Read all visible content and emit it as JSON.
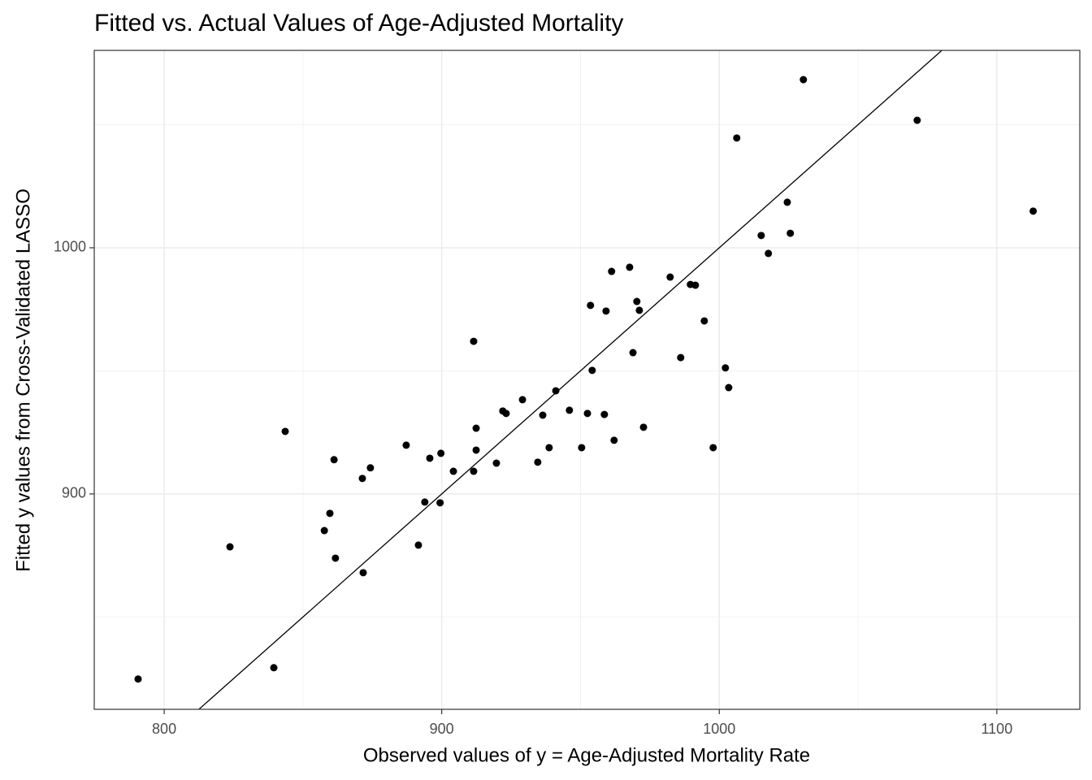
{
  "chart_data": {
    "type": "scatter",
    "title": "Fitted vs. Actual Values of Age-Adjusted Mortality",
    "x_label": "Observed values of y = Age-Adjusted Mortality Rate",
    "y_label": "Fitted y values from Cross-Validated LASSO",
    "xlim": [
      774.8,
      1129.9
    ],
    "ylim": [
      812.5,
      1080.2
    ],
    "xticks": [
      800,
      900,
      1000,
      1100
    ],
    "yticks": [
      900,
      1000
    ],
    "xminor": [
      850,
      950,
      1050
    ],
    "yminor": [
      850,
      950,
      1050
    ],
    "grid": true,
    "color": "#000000",
    "reference_line": {
      "slope": 1,
      "intercept": 0
    },
    "x": [
      790.6,
      823.7,
      839.5,
      843.6,
      857.7,
      859.7,
      861.2,
      861.7,
      871.4,
      871.7,
      874.3,
      887.2,
      891.6,
      893.9,
      895.7,
      899.4,
      899.7,
      904.2,
      911.5,
      911.5,
      912.4,
      912.4,
      919.7,
      922.0,
      923.2,
      929.1,
      934.6,
      936.4,
      938.7,
      941.1,
      946.0,
      950.4,
      952.5,
      953.6,
      954.2,
      958.6,
      959.2,
      961.2,
      962.1,
      967.7,
      968.9,
      970.3,
      971.2,
      972.7,
      982.3,
      986.1,
      989.6,
      991.4,
      994.6,
      997.8,
      1002.2,
      1003.4,
      1006.3,
      1015.1,
      1017.7,
      1024.5,
      1025.6,
      1030.3,
      1071.3,
      1113.1
    ],
    "values": [
      824.8,
      878.5,
      829.4,
      925.4,
      885.1,
      892.1,
      913.9,
      873.9,
      906.3,
      868.0,
      910.6,
      919.8,
      879.2,
      896.7,
      914.5,
      896.4,
      916.5,
      909.2,
      909.2,
      962.0,
      926.7,
      917.8,
      912.5,
      933.7,
      932.7,
      938.3,
      912.9,
      932.0,
      918.8,
      941.9,
      934.0,
      918.8,
      932.7,
      976.6,
      950.2,
      932.3,
      974.3,
      990.4,
      921.8,
      992.1,
      957.4,
      978.2,
      974.6,
      927.1,
      988.1,
      955.4,
      985.1,
      984.8,
      970.3,
      918.8,
      951.2,
      943.2,
      1044.6,
      1005.0,
      997.7,
      1018.5,
      1005.9,
      1068.3,
      1051.8,
      1014.9
    ]
  }
}
